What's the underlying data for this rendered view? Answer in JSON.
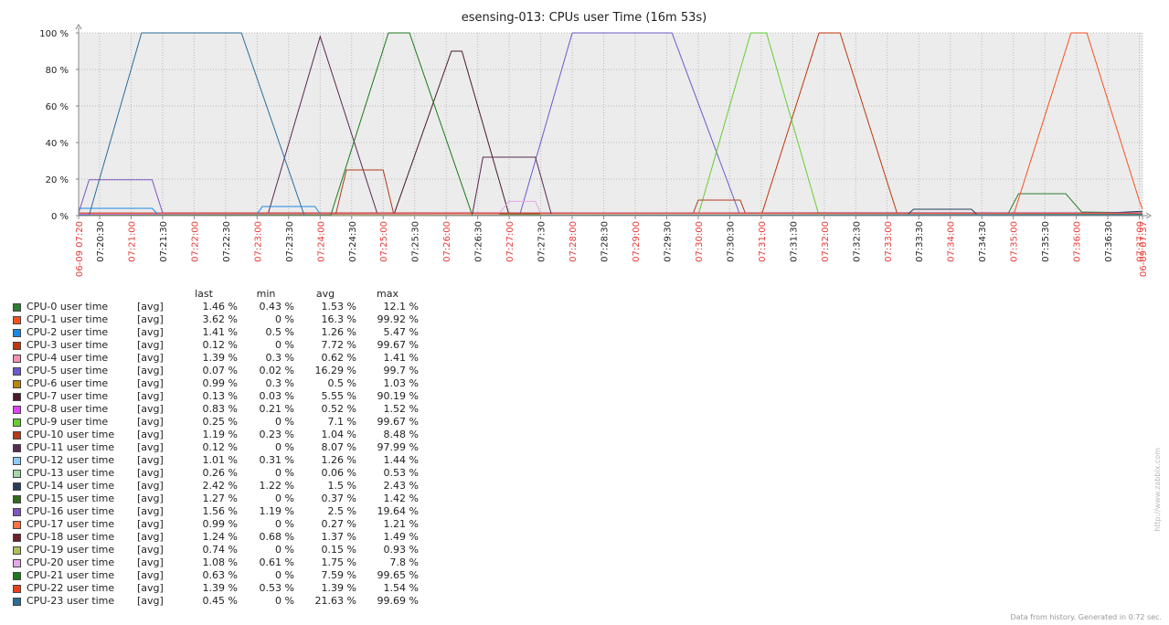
{
  "chart_data": {
    "type": "line",
    "title": "esensing-013: CPUs user Time (16m 53s)",
    "y_ticks": [
      "0 %",
      "20 %",
      "40 %",
      "60 %",
      "80 %",
      "100 %"
    ],
    "ylim": [
      0,
      100
    ],
    "x_range_minutes": [
      "07:20:10",
      "07:37:03"
    ],
    "x_tick_labels": [
      "06-09 07:20",
      "07:20:30",
      "07:21:00",
      "07:21:30",
      "07:22:00",
      "07:22:30",
      "07:23:00",
      "07:23:30",
      "07:24:00",
      "07:24:30",
      "07:25:00",
      "07:25:30",
      "07:26:00",
      "07:26:30",
      "07:27:00",
      "07:27:30",
      "07:28:00",
      "07:28:30",
      "07:29:00",
      "07:29:30",
      "07:30:00",
      "07:30:30",
      "07:31:00",
      "07:31:30",
      "07:32:00",
      "07:32:30",
      "07:33:00",
      "07:33:30",
      "07:34:00",
      "07:34:30",
      "07:35:00",
      "07:35:30",
      "07:36:00",
      "07:36:30",
      "07:37:00",
      "06-09 07:37"
    ],
    "x_tick_times": [
      "07:20:10",
      "07:20:30",
      "07:21:00",
      "07:21:30",
      "07:22:00",
      "07:22:30",
      "07:23:00",
      "07:23:30",
      "07:24:00",
      "07:24:30",
      "07:25:00",
      "07:25:30",
      "07:26:00",
      "07:26:30",
      "07:27:00",
      "07:27:30",
      "07:28:00",
      "07:28:30",
      "07:29:00",
      "07:29:30",
      "07:30:00",
      "07:30:30",
      "07:31:00",
      "07:31:30",
      "07:32:00",
      "07:32:30",
      "07:33:00",
      "07:33:30",
      "07:34:00",
      "07:34:30",
      "07:35:00",
      "07:35:30",
      "07:36:00",
      "07:36:30",
      "07:37:00",
      "07:37:03"
    ],
    "x_tick_highlight": [
      true,
      false,
      true,
      false,
      true,
      false,
      true,
      false,
      true,
      false,
      true,
      false,
      true,
      false,
      true,
      false,
      true,
      false,
      true,
      false,
      true,
      false,
      true,
      false,
      true,
      false,
      true,
      false,
      true,
      false,
      true,
      false,
      true,
      false,
      true,
      true
    ],
    "grid": true,
    "legend_columns": [
      "last",
      "min",
      "avg",
      "max"
    ],
    "series": [
      {
        "name": "CPU-0 user time",
        "func": "[avg]",
        "color": "#2e7d32",
        "last": "1.46 %",
        "min": "0.43 %",
        "avg": "1.53 %",
        "max": "12.1 %",
        "points": [
          [
            "07:20:10",
            1
          ],
          [
            "07:34:55",
            1
          ],
          [
            "07:35:05",
            12
          ],
          [
            "07:35:30",
            12
          ],
          [
            "07:35:50",
            12
          ],
          [
            "07:36:05",
            2
          ],
          [
            "07:37:03",
            1.5
          ]
        ]
      },
      {
        "name": "CPU-1 user time",
        "func": "[avg]",
        "color": "#f4511e",
        "last": "3.62 %",
        "min": "0 %",
        "avg": "16.3 %",
        "max": "99.92 %",
        "points": [
          [
            "07:20:10",
            0.3
          ],
          [
            "07:34:55",
            0.3
          ],
          [
            "07:35:00",
            0
          ],
          [
            "07:35:55",
            100
          ],
          [
            "07:36:10",
            100
          ],
          [
            "07:37:00",
            8
          ],
          [
            "07:37:03",
            3.6
          ]
        ]
      },
      {
        "name": "CPU-2 user time",
        "func": "[avg]",
        "color": "#1e88e5",
        "last": "1.41 %",
        "min": "0.5 %",
        "avg": "1.26 %",
        "max": "5.47 %",
        "points": [
          [
            "07:20:10",
            0.8
          ],
          [
            "07:37:03",
            1.4
          ]
        ]
      },
      {
        "name": "CPU-3 user time",
        "func": "[avg]",
        "color": "#bf360c",
        "last": "0.12 %",
        "min": "0 %",
        "avg": "7.72 %",
        "max": "99.67 %",
        "points": [
          [
            "07:20:10",
            0.3
          ],
          [
            "07:31:00",
            0
          ],
          [
            "07:31:55",
            100
          ],
          [
            "07:32:15",
            100
          ],
          [
            "07:33:10",
            0
          ],
          [
            "07:37:03",
            0.1
          ]
        ]
      },
      {
        "name": "CPU-4 user time",
        "func": "[avg]",
        "color": "#f48fb1",
        "last": "1.39 %",
        "min": "0.3 %",
        "avg": "0.62 %",
        "max": "1.41 %",
        "points": [
          [
            "07:20:10",
            0.5
          ],
          [
            "07:37:03",
            1.4
          ]
        ]
      },
      {
        "name": "CPU-5 user time",
        "func": "[avg]",
        "color": "#6a5acd",
        "last": "0.07 %",
        "min": "0.02 %",
        "avg": "16.29 %",
        "max": "99.7 %",
        "points": [
          [
            "07:20:10",
            0.5
          ],
          [
            "07:27:10",
            0.3
          ],
          [
            "07:28:00",
            100
          ],
          [
            "07:29:35",
            100
          ],
          [
            "07:30:40",
            0
          ],
          [
            "07:37:03",
            0.07
          ]
        ]
      },
      {
        "name": "CPU-6 user time",
        "func": "[avg]",
        "color": "#b8860b",
        "last": "0.99 %",
        "min": "0.3 %",
        "avg": "0.5 %",
        "max": "1.03 %",
        "points": [
          [
            "07:20:10",
            0.4
          ],
          [
            "07:37:03",
            1.0
          ]
        ]
      },
      {
        "name": "CPU-7 user time",
        "func": "[avg]",
        "color": "#4a1a2c",
        "last": "0.13 %",
        "min": "0.03 %",
        "avg": "5.55 %",
        "max": "90.19 %",
        "points": [
          [
            "07:20:10",
            0.2
          ],
          [
            "07:25:10",
            0.2
          ],
          [
            "07:26:05",
            90
          ],
          [
            "07:26:15",
            90
          ],
          [
            "07:27:00",
            0.2
          ],
          [
            "07:37:03",
            0.13
          ]
        ]
      },
      {
        "name": "CPU-8 user time",
        "func": "[avg]",
        "color": "#e040fb",
        "last": "0.83 %",
        "min": "0.21 %",
        "avg": "0.52 %",
        "max": "1.52 %",
        "points": [
          [
            "07:20:10",
            0.5
          ],
          [
            "07:37:03",
            0.8
          ]
        ]
      },
      {
        "name": "CPU-9 user time",
        "func": "[avg]",
        "color": "#66cc33",
        "last": "0.25 %",
        "min": "0 %",
        "avg": "7.1 %",
        "max": "99.67 %",
        "points": [
          [
            "07:20:10",
            0.2
          ],
          [
            "07:30:00",
            0.2
          ],
          [
            "07:30:50",
            100
          ],
          [
            "07:31:05",
            100
          ],
          [
            "07:31:55",
            0
          ],
          [
            "07:37:03",
            0.25
          ]
        ]
      },
      {
        "name": "CPU-10 user time",
        "func": "[avg]",
        "color": "#b23a1a",
        "last": "1.19 %",
        "min": "0.23 %",
        "avg": "1.04 %",
        "max": "8.48 %",
        "points": [
          [
            "07:20:10",
            1
          ],
          [
            "07:29:55",
            1
          ],
          [
            "07:30:00",
            8.5
          ],
          [
            "07:30:40",
            8.5
          ],
          [
            "07:30:45",
            1
          ],
          [
            "07:37:03",
            1.2
          ]
        ]
      },
      {
        "name": "CPU-11 user time",
        "func": "[avg]",
        "color": "#5b2a50",
        "last": "0.12 %",
        "min": "0 %",
        "avg": "8.07 %",
        "max": "97.99 %",
        "points": [
          [
            "07:20:10",
            0.2
          ],
          [
            "07:23:10",
            0.2
          ],
          [
            "07:24:00",
            98
          ],
          [
            "07:24:55",
            0
          ],
          [
            "07:37:03",
            0.12
          ]
        ]
      },
      {
        "name": "CPU-12 user time",
        "func": "[avg]",
        "color": "#90caf9",
        "last": "1.01 %",
        "min": "0.31 %",
        "avg": "1.26 %",
        "max": "1.44 %",
        "points": [
          [
            "07:20:10",
            1.2
          ],
          [
            "07:37:03",
            1.0
          ]
        ]
      },
      {
        "name": "CPU-13 user time",
        "func": "[avg]",
        "color": "#a5d6a7",
        "last": "0.26 %",
        "min": "0 %",
        "avg": "0.06 %",
        "max": "0.53 %",
        "points": [
          [
            "07:20:10",
            0.05
          ],
          [
            "07:37:03",
            0.26
          ]
        ]
      },
      {
        "name": "CPU-14 user time",
        "func": "[avg]",
        "color": "#263c5c",
        "last": "2.42 %",
        "min": "1.22 %",
        "avg": "1.5 %",
        "max": "2.43 %",
        "points": [
          [
            "07:20:10",
            1.3
          ],
          [
            "07:36:30",
            1.5
          ],
          [
            "07:37:03",
            2.4
          ]
        ]
      },
      {
        "name": "CPU-15 user time",
        "func": "[avg]",
        "color": "#33691e",
        "last": "1.27 %",
        "min": "0 %",
        "avg": "0.37 %",
        "max": "1.42 %",
        "points": [
          [
            "07:20:10",
            0.3
          ],
          [
            "07:37:03",
            1.3
          ]
        ]
      },
      {
        "name": "CPU-16 user time",
        "func": "[avg]",
        "color": "#7e57c2",
        "last": "1.56 %",
        "min": "1.19 %",
        "avg": "2.5 %",
        "max": "19.64 %",
        "points": [
          [
            "07:20:10",
            1.5
          ],
          [
            "07:20:20",
            19.6
          ],
          [
            "07:21:20",
            19.6
          ],
          [
            "07:21:30",
            1.5
          ],
          [
            "07:37:03",
            1.56
          ]
        ]
      },
      {
        "name": "CPU-17 user time",
        "func": "[avg]",
        "color": "#ff7043",
        "last": "0.99 %",
        "min": "0 %",
        "avg": "0.27 %",
        "max": "1.21 %",
        "points": [
          [
            "07:20:10",
            0.2
          ],
          [
            "07:37:03",
            1.0
          ]
        ]
      },
      {
        "name": "CPU-18 user time",
        "func": "[avg]",
        "color": "#6d1f2a",
        "last": "1.24 %",
        "min": "0.68 %",
        "avg": "1.37 %",
        "max": "1.49 %",
        "points": [
          [
            "07:20:10",
            1.4
          ],
          [
            "07:37:03",
            1.24
          ]
        ]
      },
      {
        "name": "CPU-19 user time",
        "func": "[avg]",
        "color": "#aebf5a",
        "last": "0.74 %",
        "min": "0 %",
        "avg": "0.15 %",
        "max": "0.93 %",
        "points": [
          [
            "07:20:10",
            0.1
          ],
          [
            "07:37:03",
            0.74
          ]
        ]
      },
      {
        "name": "CPU-20 user time",
        "func": "[avg]",
        "color": "#e6a8e8",
        "last": "1.08 %",
        "min": "0.61 %",
        "avg": "1.75 %",
        "max": "7.8 %",
        "points": [
          [
            "07:20:10",
            1
          ],
          [
            "07:26:50",
            1
          ],
          [
            "07:27:00",
            7.8
          ],
          [
            "07:27:25",
            7.8
          ],
          [
            "07:27:30",
            1
          ],
          [
            "07:37:03",
            1.08
          ]
        ]
      },
      {
        "name": "CPU-21 user time",
        "func": "[avg]",
        "color": "#1b7a1b",
        "last": "0.63 %",
        "min": "0 %",
        "avg": "7.59 %",
        "max": "99.65 %",
        "points": [
          [
            "07:20:10",
            0.2
          ],
          [
            "07:24:10",
            0.2
          ],
          [
            "07:25:05",
            100
          ],
          [
            "07:25:25",
            100
          ],
          [
            "07:26:25",
            0
          ],
          [
            "07:37:03",
            0.63
          ]
        ]
      },
      {
        "name": "CPU-22 user time",
        "func": "[avg]",
        "color": "#e8401c",
        "last": "1.39 %",
        "min": "0.53 %",
        "avg": "1.39 %",
        "max": "1.54 %",
        "points": [
          [
            "07:20:10",
            1.4
          ],
          [
            "07:37:03",
            1.39
          ]
        ]
      },
      {
        "name": "CPU-23 user time",
        "func": "[avg]",
        "color": "#2b6c99",
        "last": "0.45 %",
        "min": "0 %",
        "avg": "21.63 %",
        "max": "99.69 %",
        "points": [
          [
            "07:20:10",
            0.3
          ],
          [
            "07:20:20",
            0.3
          ],
          [
            "07:21:10",
            100
          ],
          [
            "07:22:45",
            100
          ],
          [
            "07:23:45",
            0
          ],
          [
            "07:37:03",
            0.45
          ]
        ]
      }
    ],
    "annotation_overlays": [
      {
        "color": "#1e88e5",
        "points": [
          [
            "07:20:10",
            4
          ],
          [
            "07:21:20",
            4
          ],
          [
            "07:21:25",
            1
          ]
        ]
      },
      {
        "color": "#1e88e5",
        "points": [
          [
            "07:23:00",
            1
          ],
          [
            "07:23:05",
            5
          ],
          [
            "07:23:55",
            5
          ],
          [
            "07:24:00",
            1
          ]
        ]
      },
      {
        "color": "#b23a1a",
        "points": [
          [
            "07:24:15",
            1
          ],
          [
            "07:24:25",
            25
          ],
          [
            "07:25:00",
            25
          ],
          [
            "07:25:10",
            1
          ]
        ]
      },
      {
        "color": "#5b2a50",
        "points": [
          [
            "07:26:25",
            1
          ],
          [
            "07:26:35",
            32
          ],
          [
            "07:27:25",
            32
          ],
          [
            "07:27:40",
            1
          ]
        ]
      },
      {
        "color": "#263c5c",
        "points": [
          [
            "07:33:20",
            1
          ],
          [
            "07:33:25",
            3.5
          ],
          [
            "07:34:20",
            3.5
          ],
          [
            "07:34:25",
            1
          ]
        ]
      }
    ]
  },
  "footer": {
    "side_note": "http://www.zabbix.com",
    "generated": "Data from history. Generated in 0.72 sec."
  }
}
